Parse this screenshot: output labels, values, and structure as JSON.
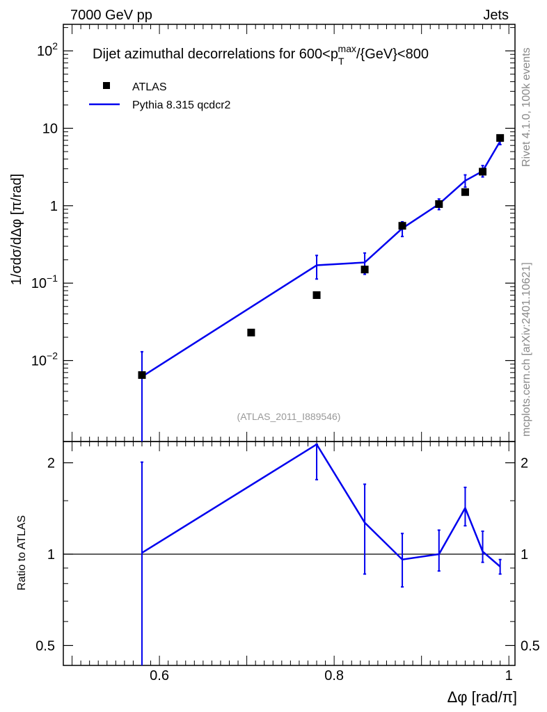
{
  "header": {
    "left": "7000 GeV pp",
    "right": "Jets"
  },
  "side_labels": {
    "rivet": "Rivet 4.1.0,  100k events",
    "mcplots": "mcplots.cern.ch [arXiv:2401.10621]"
  },
  "chart_data": [
    {
      "type": "scatter",
      "panel": "main",
      "title": "Dijet azimuthal decorrelations for 600<p",
      "title_sub": "T",
      "title_sup": "max",
      "title_tail": "/{GeV}<800",
      "ylabel": "1/σdσ/dΔφ [π/rad]",
      "yscale": "log",
      "ylim": [
        0.0009,
        220
      ],
      "xlim": [
        0.49,
        1.007
      ],
      "yticks": [
        {
          "value": 100,
          "base": "10",
          "exp": "2"
        },
        {
          "value": 10,
          "base": "10",
          "exp": ""
        },
        {
          "value": 1,
          "base": "1",
          "exp": ""
        },
        {
          "value": 0.1,
          "base": "10",
          "exp": "−1"
        },
        {
          "value": 0.01,
          "base": "10",
          "exp": "−2"
        }
      ],
      "watermark": "(ATLAS_2011_I889546)",
      "legend": [
        {
          "label": "ATLAS",
          "marker": "square",
          "color": "#000000"
        },
        {
          "label": "Pythia 8.315 qcdcr2",
          "marker": "line",
          "color": "#0000ee"
        }
      ],
      "series": [
        {
          "name": "ATLAS",
          "color": "#000000",
          "x": [
            0.58,
            0.705,
            0.78,
            0.835,
            0.878,
            0.92,
            0.95,
            0.97,
            0.99
          ],
          "y": [
            0.0065,
            0.023,
            0.07,
            0.15,
            0.55,
            1.05,
            1.5,
            2.75,
            7.5
          ]
        },
        {
          "name": "Pythia 8.315 qcdcr2",
          "color": "#0000ee",
          "x": [
            0.58,
            0.78,
            0.835,
            0.878,
            0.92,
            0.95,
            0.97,
            0.99
          ],
          "y": [
            0.0062,
            0.17,
            0.185,
            0.51,
            1.05,
            2.1,
            2.8,
            6.8
          ],
          "err_low": [
            0.0062,
            0.057,
            0.055,
            0.11,
            0.16,
            0.36,
            0.45,
            0.65
          ],
          "err_high": [
            0.0068,
            0.058,
            0.06,
            0.11,
            0.17,
            0.4,
            0.5,
            0.65
          ]
        }
      ]
    },
    {
      "type": "line",
      "panel": "ratio",
      "ylabel": "Ratio to ATLAS",
      "xlabel": "Δφ [rad/π]",
      "yscale": "log",
      "ylim": [
        0.43,
        2.35
      ],
      "xlim": [
        0.49,
        1.007
      ],
      "yticks": [
        0.5,
        1,
        2
      ],
      "ytick_labels": [
        "0.5",
        "1",
        "2"
      ],
      "xticks": [
        0.6,
        0.8,
        1
      ],
      "xtick_labels": [
        "0.6",
        "0.8",
        "1"
      ],
      "reference_line": 1,
      "series": [
        {
          "name": "Pythia 8.315 qcdcr2",
          "color": "#0000ee",
          "x": [
            0.58,
            0.78,
            0.835,
            0.878,
            0.92,
            0.95,
            0.97,
            0.99
          ],
          "y": [
            1.01,
            2.3,
            1.27,
            0.96,
            1.0,
            1.42,
            1.02,
            0.91
          ],
          "err_low": [
            0.6,
            0.54,
            0.41,
            0.18,
            0.12,
            0.18,
            0.08,
            0.05
          ],
          "err_high": [
            1.0,
            0.0,
            0.43,
            0.21,
            0.2,
            0.24,
            0.17,
            0.05
          ]
        }
      ]
    }
  ]
}
